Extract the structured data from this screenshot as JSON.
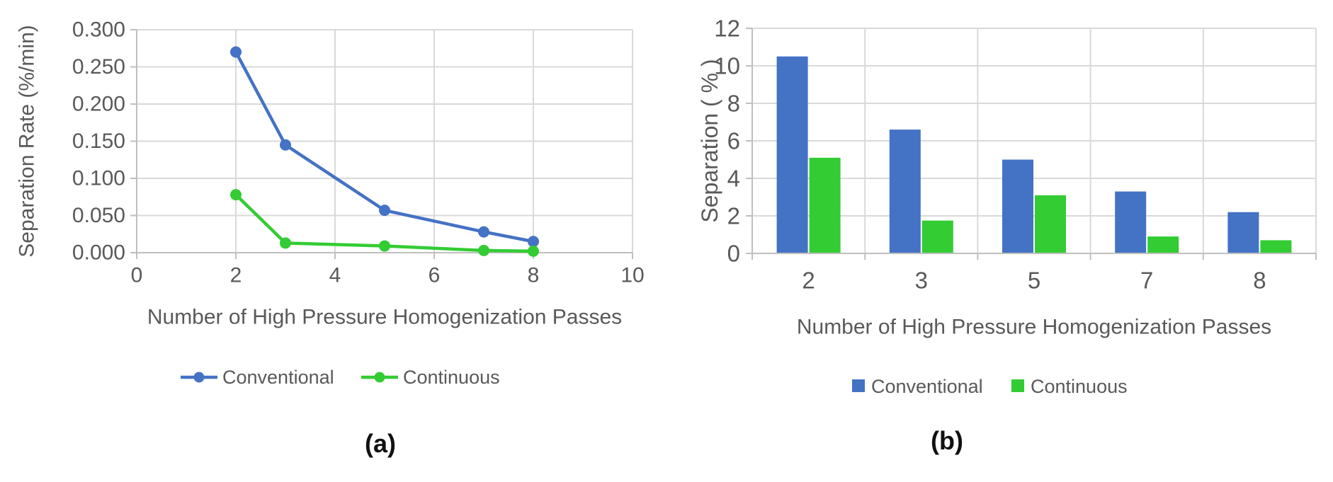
{
  "figure": {
    "captions": {
      "a": "(a)",
      "b": "(b)"
    },
    "colors": {
      "conventional": "#4472C4",
      "continuous": "#33CC33",
      "gridline": "#D9D9D9",
      "axis": "#BFBFBF",
      "text": "#595959",
      "caption": "#111111"
    }
  },
  "chart_data": [
    {
      "id": "a",
      "type": "line",
      "title": "",
      "xlabel": "Number of High Pressure Homogenization Passes",
      "ylabel": "Separation Rate (%/min)",
      "xlim": [
        0,
        10
      ],
      "ylim": [
        0,
        0.3
      ],
      "xticks": [
        0,
        2,
        4,
        6,
        8,
        10
      ],
      "ytick_labels": [
        "0.000",
        "0.050",
        "0.100",
        "0.150",
        "0.200",
        "0.250",
        "0.300"
      ],
      "yticks": [
        0,
        0.05,
        0.1,
        0.15,
        0.2,
        0.25,
        0.3
      ],
      "grid": true,
      "legend_position": "bottom",
      "series": [
        {
          "name": "Conventional",
          "color": "#4472C4",
          "x": [
            2,
            3,
            5,
            7,
            8
          ],
          "y": [
            0.27,
            0.145,
            0.057,
            0.028,
            0.015
          ]
        },
        {
          "name": "Continuous",
          "color": "#33CC33",
          "x": [
            2,
            3,
            5,
            7,
            8
          ],
          "y": [
            0.078,
            0.013,
            0.009,
            0.003,
            0.002
          ]
        }
      ]
    },
    {
      "id": "b",
      "type": "bar",
      "title": "",
      "xlabel": "Number of High Pressure Homogenization Passes",
      "ylabel": "Separation ( % )",
      "categories": [
        "2",
        "3",
        "5",
        "7",
        "8"
      ],
      "ylim": [
        0,
        12
      ],
      "yticks": [
        0,
        2,
        4,
        6,
        8,
        10,
        12
      ],
      "grid": true,
      "legend_position": "bottom",
      "series": [
        {
          "name": "Conventional",
          "color": "#4472C4",
          "values": [
            10.5,
            6.6,
            5.0,
            3.3,
            2.2
          ]
        },
        {
          "name": "Continuous",
          "color": "#33CC33",
          "values": [
            5.1,
            1.75,
            3.1,
            0.9,
            0.7
          ]
        }
      ]
    }
  ]
}
